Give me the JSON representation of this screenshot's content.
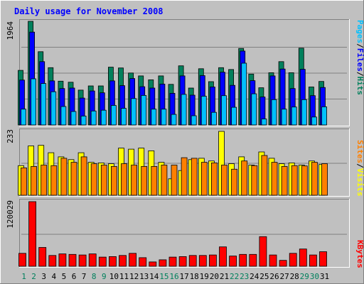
{
  "title": "Daily usage for November 2008",
  "colors": {
    "background": "#C0C0C0",
    "title": "#0000FF",
    "hits": "#00805C",
    "files": "#0000FF",
    "pages": "#00C0FF",
    "visits": "#FFFF00",
    "sites": "#FF8000",
    "kbytes": "#FF0000",
    "weekend_day": "#00805C",
    "weekday": "#000000",
    "gridline": "#808080"
  },
  "chart_data": [
    {
      "type": "bar",
      "name": "hits-files-pages",
      "ymax_label": "1964",
      "ylim": [
        0,
        1964
      ],
      "legend": [
        "Pages",
        "Files",
        "Hits"
      ],
      "legend_separators": [
        "/",
        "/"
      ],
      "categories": [
        "1",
        "2",
        "3",
        "4",
        "5",
        "6",
        "7",
        "8",
        "9",
        "10",
        "11",
        "12",
        "13",
        "14",
        "15",
        "16",
        "17",
        "18",
        "19",
        "20",
        "21",
        "22",
        "23",
        "24",
        "25",
        "26",
        "27",
        "28",
        "29",
        "30",
        "31"
      ],
      "series": [
        {
          "name": "Hits",
          "values": [
            1035,
            1964,
            1388,
            1085,
            830,
            810,
            660,
            740,
            740,
            1095,
            1080,
            985,
            930,
            855,
            930,
            770,
            1120,
            700,
            1065,
            820,
            1085,
            1050,
            1450,
            965,
            705,
            990,
            1200,
            990,
            1455,
            720,
            825
          ]
        },
        {
          "name": "Files",
          "values": [
            850,
            1760,
            1200,
            835,
            690,
            700,
            510,
            645,
            610,
            835,
            745,
            880,
            725,
            700,
            775,
            600,
            930,
            565,
            935,
            720,
            1000,
            750,
            1400,
            840,
            530,
            930,
            1060,
            690,
            1055,
            555,
            710
          ]
        },
        {
          "name": "Pages",
          "values": [
            300,
            875,
            785,
            630,
            350,
            255,
            170,
            265,
            280,
            370,
            315,
            500,
            560,
            300,
            300,
            200,
            580,
            175,
            545,
            240,
            555,
            335,
            1170,
            590,
            115,
            480,
            300,
            340,
            480,
            150,
            345
          ]
        }
      ]
    },
    {
      "type": "bar",
      "name": "visits-sites",
      "ymax_label": "233",
      "ylim": [
        0,
        233
      ],
      "legend": [
        "Sites",
        "Visits"
      ],
      "legend_separators": [
        "/"
      ],
      "categories": [
        "1",
        "2",
        "3",
        "4",
        "5",
        "6",
        "7",
        "8",
        "9",
        "10",
        "11",
        "12",
        "13",
        "14",
        "15",
        "16",
        "17",
        "18",
        "19",
        "20",
        "21",
        "22",
        "23",
        "24",
        "25",
        "26",
        "27",
        "28",
        "29",
        "30",
        "31"
      ],
      "series": [
        {
          "name": "Visits",
          "values": [
            108,
            180,
            182,
            155,
            140,
            130,
            155,
            120,
            118,
            115,
            172,
            168,
            172,
            162,
            120,
            60,
            90,
            130,
            135,
            125,
            233,
            115,
            140,
            110,
            158,
            135,
            115,
            118,
            110,
            125,
            112
          ]
        },
        {
          "name": "Sites",
          "values": [
            100,
            105,
            110,
            108,
            135,
            120,
            140,
            115,
            110,
            105,
            115,
            110,
            105,
            105,
            110,
            110,
            137,
            135,
            120,
            118,
            110,
            95,
            125,
            108,
            145,
            120,
            105,
            108,
            107,
            120,
            115
          ]
        }
      ]
    },
    {
      "type": "bar",
      "name": "kbytes",
      "ymax_label": "120029",
      "ylim": [
        0,
        120029
      ],
      "legend": [
        "KBytes"
      ],
      "categories": [
        "1",
        "2",
        "3",
        "4",
        "5",
        "6",
        "7",
        "8",
        "9",
        "10",
        "11",
        "12",
        "13",
        "14",
        "15",
        "16",
        "17",
        "18",
        "19",
        "20",
        "21",
        "22",
        "23",
        "24",
        "25",
        "26",
        "27",
        "28",
        "29",
        "30",
        "31"
      ],
      "series": [
        {
          "name": "KBytes",
          "values": [
            24000,
            120029,
            35000,
            20000,
            23000,
            22000,
            21000,
            23000,
            17000,
            18000,
            20000,
            24000,
            16000,
            8000,
            12000,
            17000,
            18000,
            20000,
            20000,
            21000,
            36000,
            19000,
            22000,
            22000,
            55000,
            21000,
            11000,
            24000,
            32000,
            21000,
            27000
          ]
        }
      ]
    }
  ]
}
